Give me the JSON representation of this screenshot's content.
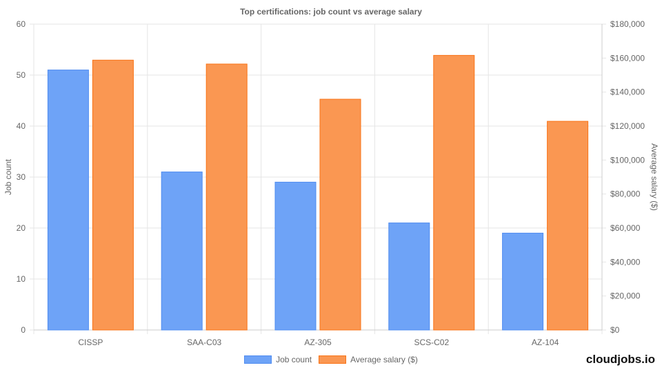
{
  "chart_data": {
    "type": "bar",
    "title": "Top certifications: job count vs average salary",
    "categories": [
      "CISSP",
      "SAA-C03",
      "AZ-305",
      "SCS-C02",
      "AZ-104"
    ],
    "series": [
      {
        "name": "Job count",
        "axis": "left",
        "values": [
          51,
          31,
          29,
          21,
          19
        ],
        "color": "#6ea3f7",
        "border": "#4f8cf0"
      },
      {
        "name": "Average salary ($)",
        "axis": "right",
        "values": [
          158800,
          156500,
          135800,
          161600,
          122800
        ],
        "color": "#fa9752",
        "border": "#f97316"
      }
    ],
    "ylabel": "Job count",
    "ylim": [
      0,
      60
    ],
    "yticks": [
      0,
      10,
      20,
      30,
      40,
      50,
      60
    ],
    "y2label": "Average salary ($)",
    "y2lim": [
      0,
      180000
    ],
    "y2ticks": [
      "$0",
      "$20,000",
      "$40,000",
      "$60,000",
      "$80,000",
      "$100,000",
      "$120,000",
      "$140,000",
      "$160,000",
      "$180,000"
    ],
    "grid": true,
    "legend": "bottom"
  },
  "brand": "cloudjobs.io"
}
